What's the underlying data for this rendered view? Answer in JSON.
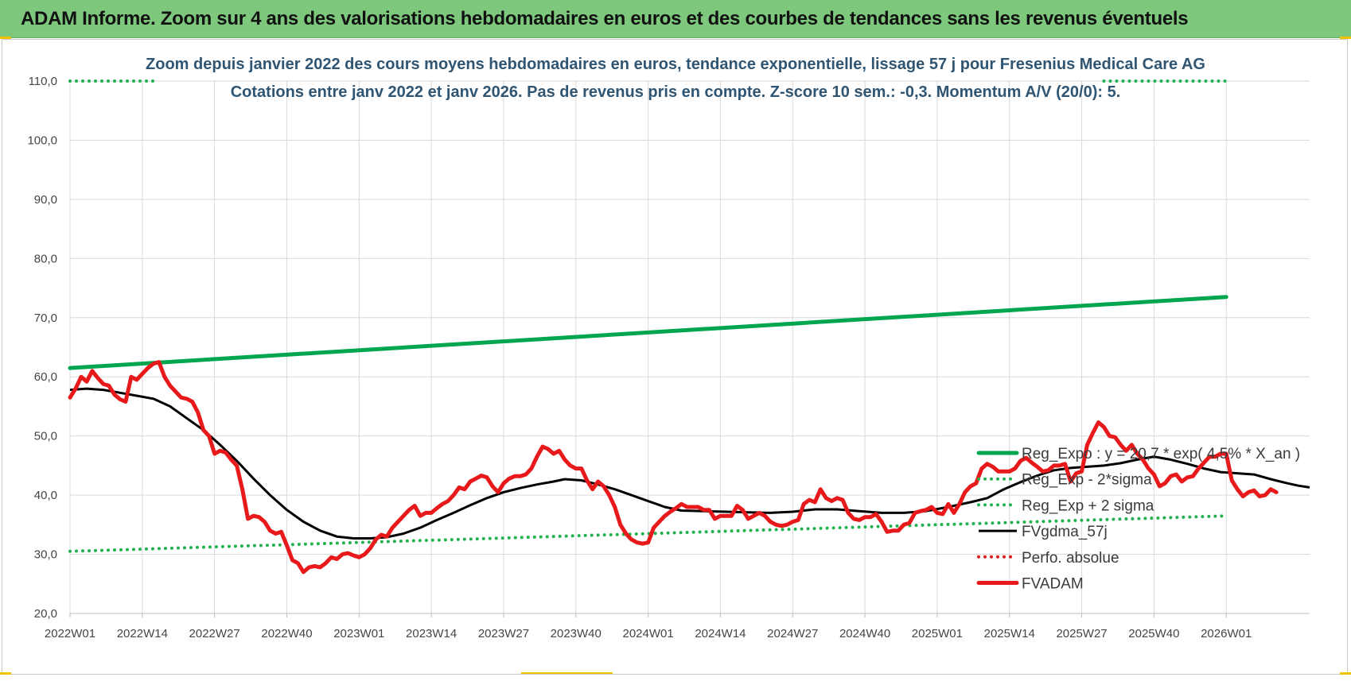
{
  "banner": {
    "title": "ADAM Informe. Zoom sur 4 ans des valorisations hebdomadaires en euros et des courbes de tendances sans les revenus éventuels"
  },
  "chart_data": {
    "type": "line",
    "title": "Zoom depuis janvier 2022 des cours moyens hebdomadaires en euros, tendance exponentielle, lissage 57 j pour Fresenius Medical Care AG",
    "subtitle": "Cotations entre janv 2022 et janv 2026. Pas de revenus pris en compte. Z-score 10 sem.: -0,3. Momentum A/V (20/0): 5.",
    "xlabel": "",
    "ylabel": "",
    "ylim": [
      20,
      110
    ],
    "yticks": [
      "20,0",
      "30,0",
      "40,0",
      "50,0",
      "60,0",
      "70,0",
      "80,0",
      "90,0",
      "100,0",
      "110,0"
    ],
    "xticks": [
      "2022W01",
      "2022W14",
      "2022W27",
      "2022W40",
      "2023W01",
      "2023W14",
      "2023W27",
      "2023W40",
      "2024W01",
      "2024W14",
      "2024W27",
      "2024W40",
      "2025W01",
      "2025W14",
      "2025W27",
      "2025W40",
      "2026W01"
    ],
    "grid": "vertical and horizontal",
    "legend_position": "right",
    "series": [
      {
        "name": "Reg_Expo : y = 20,7 * exp( 4,5% * X_an )",
        "color": "#00a64f",
        "style": "solid-thick",
        "points": [
          [
            0,
            61.5
          ],
          [
            208,
            73.5
          ]
        ]
      },
      {
        "name": "Reg_Exp - 2*sigma",
        "color": "#22b14c",
        "style": "dotted",
        "points": [
          [
            0,
            30.5
          ],
          [
            208,
            36.5
          ]
        ]
      },
      {
        "name": "Reg_Exp + 2 sigma",
        "color": "#22b14c",
        "style": "dotted",
        "points": [
          [
            0,
            110
          ],
          [
            16,
            110
          ],
          [
            186,
            110
          ],
          [
            208,
            110
          ]
        ],
        "visible_segments": [
          [
            0,
            16
          ],
          [
            186,
            208
          ]
        ]
      },
      {
        "name": "FVgdma_57j",
        "color": "#000000",
        "style": "solid",
        "points": [
          [
            0,
            57.8
          ],
          [
            3,
            58
          ],
          [
            6,
            57.8
          ],
          [
            9,
            57.3
          ],
          [
            12,
            56.8
          ],
          [
            15,
            56.3
          ],
          [
            18,
            55
          ],
          [
            21,
            53
          ],
          [
            24,
            51
          ],
          [
            27,
            48.5
          ],
          [
            30,
            45.8
          ],
          [
            33,
            42.8
          ],
          [
            36,
            40
          ],
          [
            39,
            37.5
          ],
          [
            42,
            35.5
          ],
          [
            45,
            34
          ],
          [
            48,
            33
          ],
          [
            51,
            32.7
          ],
          [
            54,
            32.7
          ],
          [
            57,
            32.9
          ],
          [
            60,
            33.5
          ],
          [
            63,
            34.5
          ],
          [
            66,
            35.8
          ],
          [
            69,
            37
          ],
          [
            72,
            38.3
          ],
          [
            75,
            39.5
          ],
          [
            78,
            40.5
          ],
          [
            81,
            41.2
          ],
          [
            84,
            41.8
          ],
          [
            87,
            42.3
          ],
          [
            89,
            42.7
          ],
          [
            92,
            42.5
          ],
          [
            95,
            41.8
          ],
          [
            98,
            41
          ],
          [
            101,
            40
          ],
          [
            104,
            39
          ],
          [
            107,
            38
          ],
          [
            110,
            37.4
          ],
          [
            114,
            37.3
          ],
          [
            118,
            37.2
          ],
          [
            122,
            37.1
          ],
          [
            126,
            37
          ],
          [
            130,
            37.2
          ],
          [
            134,
            37.6
          ],
          [
            138,
            37.6
          ],
          [
            142,
            37.3
          ],
          [
            146,
            37
          ],
          [
            150,
            37
          ],
          [
            154,
            37.3
          ],
          [
            158,
            38
          ],
          [
            162,
            38.8
          ],
          [
            165,
            39.5
          ],
          [
            168,
            41
          ],
          [
            171,
            42.2
          ],
          [
            174,
            43.3
          ],
          [
            177,
            44.2
          ],
          [
            180,
            44.6
          ],
          [
            183,
            44.8
          ],
          [
            186,
            45
          ],
          [
            189,
            45.4
          ],
          [
            192,
            46
          ],
          [
            195,
            46.5
          ],
          [
            198,
            46
          ],
          [
            201,
            45.3
          ],
          [
            204,
            44.5
          ],
          [
            207,
            43.9
          ],
          [
            210,
            43.7
          ],
          [
            213,
            43.5
          ],
          [
            216,
            42.7
          ],
          [
            219,
            42
          ],
          [
            221,
            41.6
          ],
          [
            223,
            41.3
          ]
        ]
      },
      {
        "name": "Perfo. absolue",
        "color": "#e21b1b",
        "style": "dotted",
        "points": []
      },
      {
        "name": "FVADAM",
        "color": "#e8191b",
        "style": "solid-thick",
        "points": [
          [
            0,
            56.5
          ],
          [
            1,
            58
          ],
          [
            2,
            60
          ],
          [
            3,
            59.2
          ],
          [
            4,
            61
          ],
          [
            5,
            59.8
          ],
          [
            6,
            58.8
          ],
          [
            7,
            58.5
          ],
          [
            8,
            57
          ],
          [
            9,
            56.2
          ],
          [
            10,
            55.8
          ],
          [
            11,
            60
          ],
          [
            12,
            59.5
          ],
          [
            13,
            60.5
          ],
          [
            14,
            61.5
          ],
          [
            15,
            62.2
          ],
          [
            16,
            62.5
          ],
          [
            17,
            60
          ],
          [
            18,
            58.5
          ],
          [
            19,
            57.5
          ],
          [
            20,
            56.5
          ],
          [
            21,
            56.3
          ],
          [
            22,
            55.8
          ],
          [
            23,
            54
          ],
          [
            24,
            51
          ],
          [
            25,
            50
          ],
          [
            26,
            47
          ],
          [
            27,
            47.5
          ],
          [
            28,
            47.2
          ],
          [
            29,
            46
          ],
          [
            30,
            45
          ],
          [
            31,
            41
          ],
          [
            32,
            36
          ],
          [
            33,
            36.5
          ],
          [
            34,
            36.3
          ],
          [
            35,
            35.5
          ],
          [
            36,
            34
          ],
          [
            37,
            33.5
          ],
          [
            38,
            33.8
          ],
          [
            39,
            31.5
          ],
          [
            40,
            29
          ],
          [
            41,
            28.5
          ],
          [
            42,
            27
          ],
          [
            43,
            27.8
          ],
          [
            44,
            28
          ],
          [
            45,
            27.8
          ],
          [
            46,
            28.5
          ],
          [
            47,
            29.5
          ],
          [
            48,
            29.2
          ],
          [
            49,
            30
          ],
          [
            50,
            30.2
          ],
          [
            51,
            29.8
          ],
          [
            52,
            29.5
          ],
          [
            53,
            30
          ],
          [
            54,
            31
          ],
          [
            55,
            32.5
          ],
          [
            56,
            33.3
          ],
          [
            57,
            33
          ],
          [
            58,
            34.5
          ],
          [
            59,
            35.5
          ],
          [
            60,
            36.5
          ],
          [
            61,
            37.5
          ],
          [
            62,
            38.2
          ],
          [
            63,
            36.5
          ],
          [
            64,
            37
          ],
          [
            65,
            37
          ],
          [
            66,
            37.8
          ],
          [
            67,
            38.5
          ],
          [
            68,
            39
          ],
          [
            69,
            40
          ],
          [
            70,
            41.3
          ],
          [
            71,
            41
          ],
          [
            72,
            42.3
          ],
          [
            73,
            42.8
          ],
          [
            74,
            43.3
          ],
          [
            75,
            43
          ],
          [
            76,
            41.5
          ],
          [
            77,
            40.5
          ],
          [
            78,
            42
          ],
          [
            79,
            42.8
          ],
          [
            80,
            43.2
          ],
          [
            81,
            43.2
          ],
          [
            82,
            43.5
          ],
          [
            83,
            44.5
          ],
          [
            84,
            46.5
          ],
          [
            85,
            48.2
          ],
          [
            86,
            47.8
          ],
          [
            87,
            47
          ],
          [
            88,
            47.5
          ],
          [
            89,
            46
          ],
          [
            90,
            45
          ],
          [
            91,
            44.5
          ],
          [
            92,
            44.5
          ],
          [
            93,
            42.5
          ],
          [
            94,
            41
          ],
          [
            95,
            42.3
          ],
          [
            96,
            41.5
          ],
          [
            97,
            40
          ],
          [
            98,
            38
          ],
          [
            99,
            35
          ],
          [
            100,
            33.5
          ],
          [
            101,
            32.5
          ],
          [
            102,
            32
          ],
          [
            103,
            31.8
          ],
          [
            104,
            32
          ],
          [
            105,
            34.5
          ],
          [
            106,
            35.5
          ],
          [
            107,
            36.5
          ],
          [
            108,
            37.2
          ],
          [
            109,
            37.8
          ],
          [
            110,
            38.5
          ],
          [
            111,
            38
          ],
          [
            112,
            38
          ],
          [
            113,
            38
          ],
          [
            114,
            37.5
          ],
          [
            115,
            37.5
          ],
          [
            116,
            36
          ],
          [
            117,
            36.5
          ],
          [
            118,
            36.5
          ],
          [
            119,
            36.5
          ],
          [
            120,
            38.2
          ],
          [
            121,
            37.5
          ],
          [
            122,
            36
          ],
          [
            123,
            36.5
          ],
          [
            124,
            37
          ],
          [
            125,
            36.5
          ],
          [
            126,
            35.5
          ],
          [
            127,
            35
          ],
          [
            128,
            34.8
          ],
          [
            129,
            35
          ],
          [
            130,
            35.5
          ],
          [
            131,
            35.8
          ],
          [
            132,
            38.5
          ],
          [
            133,
            39.2
          ],
          [
            134,
            38.8
          ],
          [
            135,
            41
          ],
          [
            136,
            39.5
          ],
          [
            137,
            39
          ],
          [
            138,
            39.5
          ],
          [
            139,
            39.2
          ],
          [
            140,
            37
          ],
          [
            141,
            36
          ],
          [
            142,
            35.8
          ],
          [
            143,
            36.3
          ],
          [
            144,
            36.3
          ],
          [
            145,
            36.8
          ],
          [
            146,
            35.5
          ],
          [
            147,
            33.8
          ],
          [
            148,
            34
          ],
          [
            149,
            34
          ],
          [
            150,
            35
          ],
          [
            151,
            35.3
          ],
          [
            152,
            37
          ],
          [
            153,
            37.3
          ],
          [
            154,
            37.5
          ],
          [
            155,
            38
          ],
          [
            156,
            37
          ],
          [
            157,
            36.8
          ],
          [
            158,
            38.5
          ],
          [
            159,
            37
          ],
          [
            160,
            38.5
          ],
          [
            161,
            40.5
          ],
          [
            162,
            41.5
          ],
          [
            163,
            42
          ],
          [
            164,
            44.5
          ],
          [
            165,
            45.3
          ],
          [
            166,
            44.8
          ],
          [
            167,
            44
          ],
          [
            168,
            44
          ],
          [
            169,
            44
          ],
          [
            170,
            44.5
          ],
          [
            171,
            45.8
          ],
          [
            172,
            46.3
          ],
          [
            173,
            45.5
          ],
          [
            174,
            44.8
          ],
          [
            175,
            44
          ],
          [
            176,
            44.2
          ],
          [
            177,
            45
          ],
          [
            178,
            45
          ],
          [
            179,
            45.3
          ],
          [
            180,
            42.3
          ],
          [
            181,
            43.7
          ],
          [
            182,
            44
          ],
          [
            183,
            48.5
          ],
          [
            184,
            50.5
          ],
          [
            185,
            52.3
          ],
          [
            186,
            51.5
          ],
          [
            187,
            50
          ],
          [
            188,
            49.8
          ],
          [
            189,
            48.5
          ],
          [
            190,
            47.5
          ],
          [
            191,
            48.5
          ],
          [
            192,
            47
          ],
          [
            193,
            46
          ],
          [
            194,
            44.5
          ],
          [
            195,
            43.5
          ],
          [
            196,
            41.5
          ],
          [
            197,
            42
          ],
          [
            198,
            43.2
          ],
          [
            199,
            43.5
          ],
          [
            200,
            42.3
          ],
          [
            201,
            43
          ],
          [
            202,
            43.2
          ],
          [
            203,
            44.5
          ],
          [
            204,
            45.5
          ],
          [
            205,
            46.5
          ],
          [
            206,
            46.5
          ],
          [
            207,
            47
          ],
          [
            208,
            47
          ],
          [
            209,
            42.5
          ],
          [
            210,
            41
          ],
          [
            211,
            39.8
          ],
          [
            212,
            40.5
          ],
          [
            213,
            40.8
          ],
          [
            214,
            39.8
          ],
          [
            215,
            40
          ],
          [
            216,
            41
          ],
          [
            217,
            40.5
          ]
        ]
      }
    ]
  },
  "colors": {
    "banner": "#7dc87d",
    "subtitle": "#2f5573",
    "grid": "#d9d9d9"
  }
}
